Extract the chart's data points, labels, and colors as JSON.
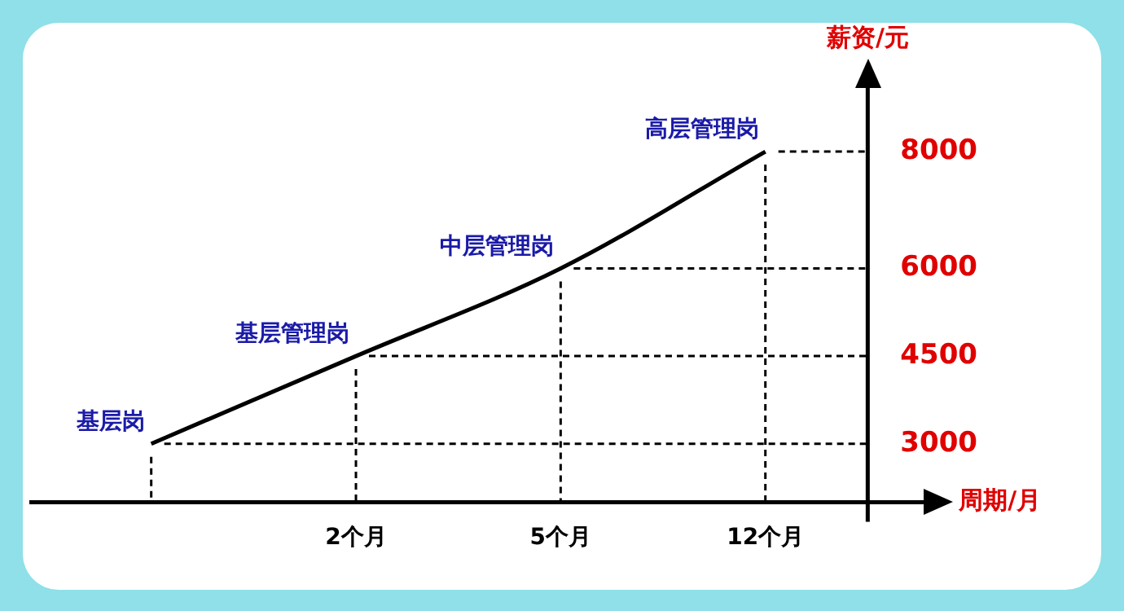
{
  "chart_data": {
    "type": "line",
    "xlabel": "周期/月",
    "ylabel": "薪资/元",
    "categories": [
      null,
      "2个月",
      "5个月",
      "12个月"
    ],
    "series": [
      {
        "color": "#000000",
        "values": [
          3000,
          4500,
          6000,
          8000
        ]
      }
    ],
    "ylim": [
      2000,
      9200
    ],
    "yticks": [
      3000,
      4500,
      6000,
      8000
    ],
    "grid": true,
    "legend": false,
    "annotations": [
      "基层岗",
      {
        "text": "基层管理岗",
        "x": "2个月",
        "y": 4500
      },
      {
        "text": "中层管理岗",
        "x": "5个月",
        "y": 6000
      },
      {
        "text": "高层管理岗",
        "x": "12个月",
        "y": 8000
      }
    ]
  }
}
